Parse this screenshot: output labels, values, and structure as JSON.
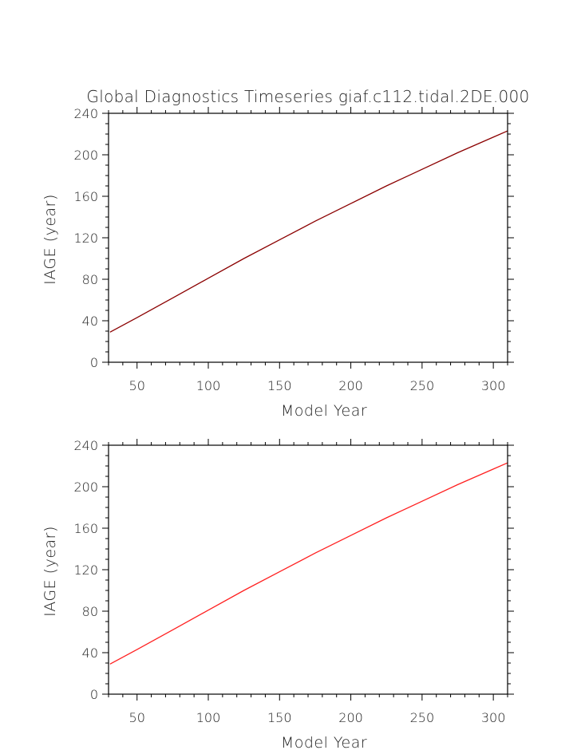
{
  "title": "Global Diagnostics Timeseries giaf.c112.tidal.2DE.000",
  "chart_data": [
    {
      "type": "line",
      "title": "Global Diagnostics Timeseries giaf.c112.tidal.2DE.000",
      "xlabel": "Model Year",
      "ylabel": "IAGE (year)",
      "xlim": [
        30,
        310
      ],
      "ylim": [
        0,
        240
      ],
      "xticks": [
        50,
        100,
        150,
        200,
        250,
        300
      ],
      "yticks": [
        0,
        40,
        80,
        120,
        160,
        200,
        240
      ],
      "grid": false,
      "series": [
        {
          "color": "#8b0000",
          "x": [
            31,
            50,
            75,
            100,
            125,
            150,
            175,
            200,
            225,
            250,
            275,
            300,
            310
          ],
          "y": [
            29,
            43,
            62,
            81,
            100,
            118,
            136,
            153,
            170,
            186,
            202,
            217,
            223
          ]
        }
      ]
    },
    {
      "type": "line",
      "title": "",
      "xlabel": "Model Year",
      "ylabel": "IAGE (year)",
      "xlim": [
        30,
        310
      ],
      "ylim": [
        0,
        240
      ],
      "xticks": [
        50,
        100,
        150,
        200,
        250,
        300
      ],
      "yticks": [
        0,
        40,
        80,
        120,
        160,
        200,
        240
      ],
      "grid": false,
      "series": [
        {
          "color": "#ff2020",
          "x": [
            31,
            50,
            75,
            100,
            125,
            150,
            175,
            200,
            225,
            250,
            275,
            300,
            310
          ],
          "y": [
            29,
            43,
            62,
            81,
            100,
            118,
            136,
            153,
            170,
            186,
            202,
            217,
            223
          ]
        }
      ]
    }
  ]
}
